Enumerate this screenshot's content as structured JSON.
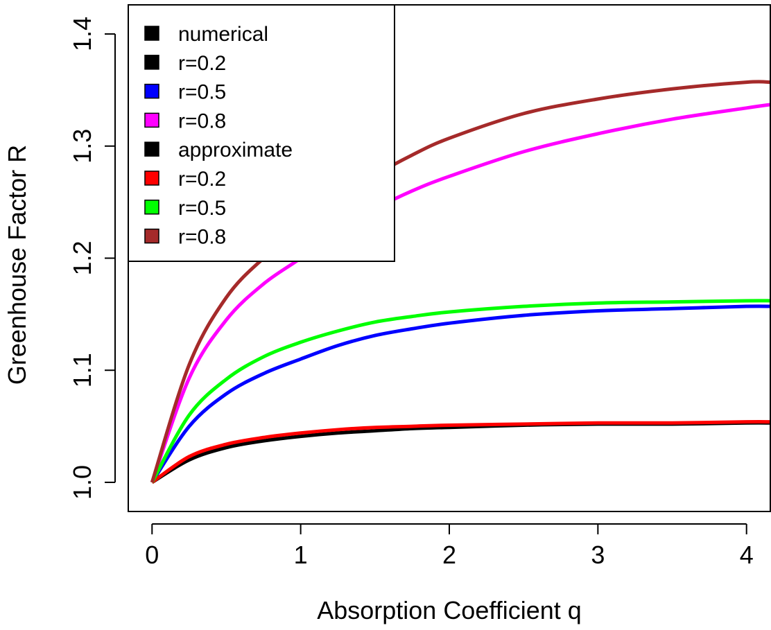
{
  "chart_data": {
    "type": "line",
    "title": "",
    "xlabel": "Absorption Coefficient q",
    "ylabel": "Greenhouse Factor R",
    "xlim": [
      -0.16,
      4.16
    ],
    "ylim": [
      0.974,
      1.426
    ],
    "xticks": [
      0,
      1,
      2,
      3,
      4
    ],
    "yticks": [
      1.0,
      1.1,
      1.2,
      1.3,
      1.4
    ],
    "xtick_labels": [
      "0",
      "1",
      "2",
      "3",
      "4"
    ],
    "ytick_labels": [
      "1.0",
      "1.1",
      "1.2",
      "1.3",
      "1.4"
    ],
    "grid": false,
    "legend_position": "top-left",
    "legend": [
      {
        "label": "numerical",
        "color": "#000000"
      },
      {
        "label": "r=0.2",
        "color": "#000000"
      },
      {
        "label": "r=0.5",
        "color": "#0000ff"
      },
      {
        "label": "r=0.8",
        "color": "#ff00ff"
      },
      {
        "label": "approximate",
        "color": "#000000"
      },
      {
        "label": "r=0.2",
        "color": "#ff0000"
      },
      {
        "label": "r=0.5",
        "color": "#00ff00"
      },
      {
        "label": "r=0.8",
        "color": "#a52a2a"
      }
    ],
    "x": [
      0,
      0.25,
      0.5,
      0.75,
      1.0,
      1.25,
      1.5,
      1.75,
      2.0,
      2.5,
      3.0,
      3.5,
      4.0,
      4.16
    ],
    "series": [
      {
        "name": "r=0.2",
        "color": "#000000",
        "values": [
          1.0,
          1.02,
          1.031,
          1.037,
          1.041,
          1.044,
          1.046,
          1.048,
          1.049,
          1.051,
          1.052,
          1.052,
          1.053,
          1.053
        ]
      },
      {
        "name": "r=0.5",
        "color": "#0000ff",
        "values": [
          1.0,
          1.05,
          1.079,
          1.097,
          1.11,
          1.122,
          1.131,
          1.137,
          1.142,
          1.149,
          1.153,
          1.155,
          1.157,
          1.157
        ]
      },
      {
        "name": "r=0.8",
        "color": "#ff00ff",
        "values": [
          1.0,
          1.093,
          1.145,
          1.177,
          1.2,
          1.225,
          1.244,
          1.26,
          1.273,
          1.295,
          1.311,
          1.324,
          1.334,
          1.337
        ]
      },
      {
        "name": "r=0.2",
        "color": "#ff0000",
        "values": [
          1.0,
          1.023,
          1.034,
          1.04,
          1.044,
          1.047,
          1.049,
          1.05,
          1.051,
          1.052,
          1.053,
          1.053,
          1.054,
          1.054
        ]
      },
      {
        "name": "r=0.5",
        "color": "#00ff00",
        "values": [
          1.0,
          1.06,
          1.092,
          1.112,
          1.125,
          1.135,
          1.143,
          1.148,
          1.152,
          1.157,
          1.16,
          1.161,
          1.162,
          1.162
        ]
      },
      {
        "name": "r=0.8",
        "color": "#a52a2a",
        "values": [
          1.0,
          1.105,
          1.165,
          1.2,
          1.226,
          1.253,
          1.274,
          1.292,
          1.307,
          1.329,
          1.342,
          1.351,
          1.357,
          1.357
        ]
      }
    ]
  }
}
